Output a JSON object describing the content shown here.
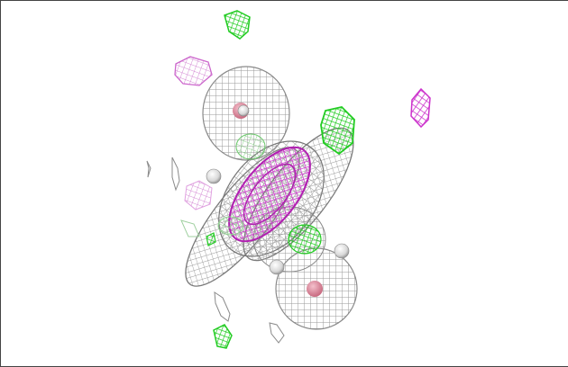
{
  "viewer": {
    "background": "#ffffff",
    "frame_color": "#444444",
    "colors": {
      "mesh_gray": "#9a9a9a",
      "mesh_gray_dark": "#6e6e6e",
      "positive_lobe": "#cc33cc",
      "positive_lobe_light": "#e6a8e6",
      "negative_lobe": "#22cc22",
      "negative_lobe_light": "#9adf9a",
      "hydrogen_atom": "#e8e8e8",
      "oxygen_atom": "#e08a9a"
    },
    "icons": [
      "molecule-mesh-icon"
    ]
  }
}
